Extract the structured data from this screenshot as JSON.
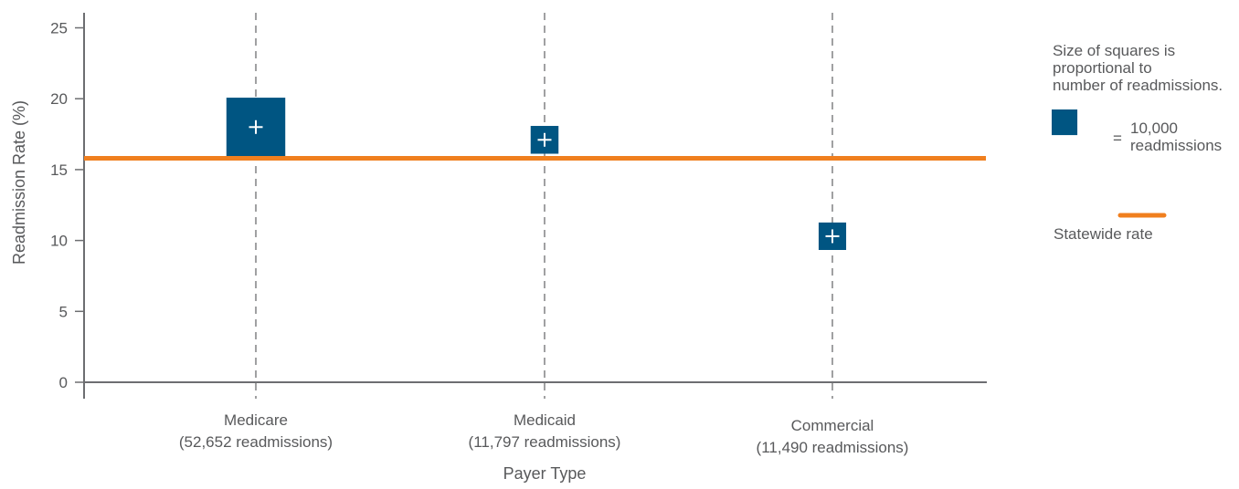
{
  "chart_data": {
    "type": "scatter",
    "ylabel": "Readmission Rate (%)",
    "xlabel": "Payer Type",
    "ylim": [
      0,
      25
    ],
    "yticks": [
      0,
      5,
      10,
      15,
      20,
      25
    ],
    "grid": false,
    "categories": [
      {
        "name": "Medicare",
        "sub": "(52,652 readmissions)"
      },
      {
        "name": "Medicaid",
        "sub": "(11,797 readmissions)"
      },
      {
        "name": "Commercial",
        "sub": "(11,490 readmissions)"
      }
    ],
    "points": [
      {
        "category": "Medicare",
        "rate": 18.0,
        "readmissions": 52652
      },
      {
        "category": "Medicaid",
        "rate": 17.1,
        "readmissions": 11797
      },
      {
        "category": "Commercial",
        "rate": 10.3,
        "readmissions": 11490
      }
    ],
    "reference_line": {
      "value": 15.8
    },
    "colors": {
      "square": "#005582",
      "line": "#f07f1e",
      "axis": "#6d6e71",
      "text": "#58595b"
    },
    "legend": {
      "placement": "right",
      "note_lines": [
        "Size of squares is",
        "proportional to",
        "number of readmissions."
      ],
      "scale_value": 10000,
      "scale_lines": [
        "10,000",
        "readmissions"
      ],
      "scale_equals": "=",
      "line_label": "Statewide rate"
    }
  }
}
